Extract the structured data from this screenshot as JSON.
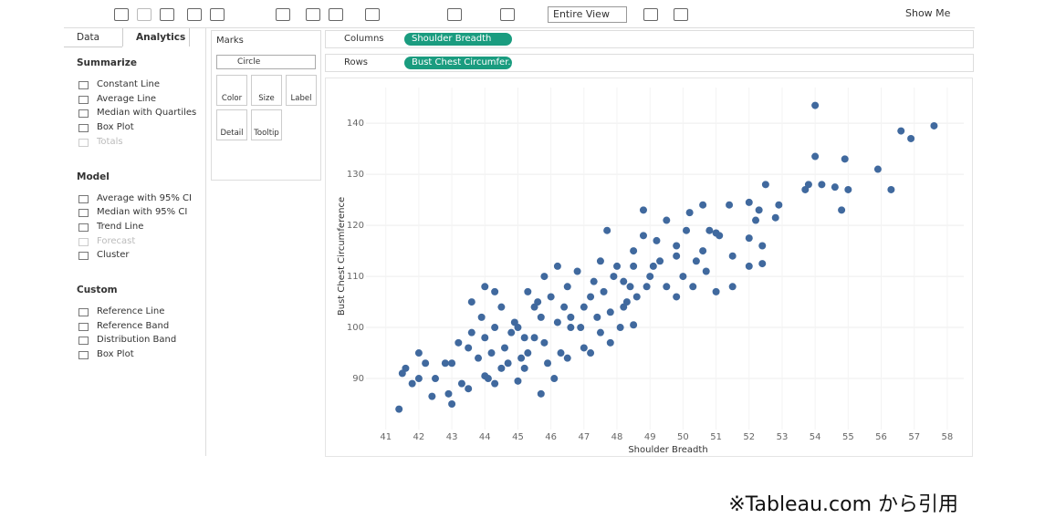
{
  "toolbar": {
    "view_mode": "Entire View",
    "show_me": "Show Me"
  },
  "side_panel": {
    "tabs": [
      "Data",
      "Analytics"
    ],
    "active_tab": 1,
    "sections": [
      {
        "title": "Summarize",
        "items": [
          {
            "label": "Constant Line"
          },
          {
            "label": "Average Line"
          },
          {
            "label": "Median with Quartiles"
          },
          {
            "label": "Box Plot"
          },
          {
            "label": "Totals",
            "disabled": true
          }
        ]
      },
      {
        "title": "Model",
        "items": [
          {
            "label": "Average with 95% CI"
          },
          {
            "label": "Median with 95% CI"
          },
          {
            "label": "Trend Line"
          },
          {
            "label": "Forecast",
            "disabled": true
          },
          {
            "label": "Cluster"
          }
        ]
      },
      {
        "title": "Custom",
        "items": [
          {
            "label": "Reference Line"
          },
          {
            "label": "Reference Band"
          },
          {
            "label": "Distribution Band"
          },
          {
            "label": "Box Plot"
          }
        ]
      }
    ]
  },
  "marks": {
    "title": "Marks",
    "mark_type": "Circle",
    "cards": [
      "Color",
      "Size",
      "Label",
      "Detail",
      "Tooltip"
    ]
  },
  "shelves": {
    "columns": {
      "label": "Columns",
      "pill": "Shoulder Breadth"
    },
    "rows": {
      "label": "Rows",
      "pill": "Bust Chest Circumfer.."
    }
  },
  "chart_data": {
    "type": "scatter",
    "x_label": "Shoulder Breadth",
    "y_label": "Bust Chest Circumference",
    "color": "#40699e",
    "grid": true,
    "xlim": [
      40.4,
      58.5
    ],
    "ylim": [
      80,
      147
    ],
    "xticks": [
      41,
      42,
      43,
      44,
      45,
      46,
      47,
      48,
      49,
      50,
      51,
      52,
      53,
      54,
      55,
      56,
      57,
      58
    ],
    "yticks": [
      90,
      100,
      110,
      120,
      130,
      140
    ],
    "x": [
      54.0,
      54.0,
      54.2,
      54.6,
      54.9,
      55.0,
      54.8,
      55.9,
      56.3,
      56.6,
      56.9,
      57.6,
      53.7,
      53.8,
      52.5,
      52.9,
      52.3,
      52.0,
      51.4,
      52.8,
      52.2,
      52.0,
      52.4,
      52.0,
      52.4,
      51.1,
      51.5,
      51.5,
      51.0,
      50.6,
      50.2,
      50.8,
      50.6,
      50.4,
      50.0,
      49.8,
      50.1,
      49.5,
      49.8,
      49.2,
      48.8,
      48.8,
      48.5,
      49.0,
      48.4,
      48.6,
      48.2,
      48.0,
      47.7,
      47.5,
      47.3,
      47.0,
      46.8,
      46.5,
      46.9,
      47.2,
      46.4,
      46.2,
      45.8,
      46.0,
      45.7,
      45.5,
      45.5,
      45.8,
      45.9,
      46.3,
      46.6,
      47.5,
      47.0,
      47.8,
      48.1,
      48.5,
      49.5,
      49.8,
      50.3,
      51.0,
      50.7,
      44.5,
      44.9,
      44.6,
      44.7,
      44.2,
      44.0,
      44.3,
      44.8,
      45.1,
      45.2,
      44.5,
      44.1,
      43.8,
      43.6,
      43.9,
      43.5,
      43.2,
      43.0,
      43.3,
      42.9,
      42.5,
      42.2,
      42.0,
      41.8,
      41.5,
      41.4,
      41.6,
      42.0,
      42.4,
      42.8,
      43.0,
      43.5,
      44.0,
      44.3,
      45.2,
      45.0,
      45.7,
      46.1,
      46.5,
      47.2,
      43.6,
      44.3,
      44.0,
      45.3,
      45.6,
      46.6,
      47.4,
      48.5,
      49.1,
      49.3,
      47.9,
      47.6,
      48.2,
      48.9,
      45.0,
      45.3,
      46.2,
      47.8,
      48.3
    ],
    "y": [
      143.5,
      133.5,
      128,
      127.5,
      133,
      127,
      123,
      131,
      127,
      138.5,
      137,
      139.5,
      127,
      128,
      128,
      124,
      123,
      124.5,
      124,
      121.5,
      121,
      117.5,
      116,
      112,
      112.5,
      118,
      114,
      108,
      118.5,
      124,
      122.5,
      119,
      115,
      113,
      110,
      114,
      119,
      121,
      116,
      117,
      123,
      118,
      112,
      110,
      108,
      106,
      104,
      112,
      119,
      113,
      109,
      104,
      111,
      108,
      100,
      106,
      104,
      112,
      110,
      106,
      102,
      104,
      98,
      97,
      93,
      95,
      100,
      99,
      96,
      103,
      100,
      100.5,
      108,
      106,
      108,
      107,
      111,
      104,
      101,
      96,
      93,
      95,
      98,
      100,
      99,
      94,
      98,
      92,
      90,
      94,
      99,
      102,
      96,
      97,
      93,
      89,
      87,
      90,
      93,
      90,
      89,
      91,
      84,
      92,
      95,
      86.5,
      93,
      85,
      88,
      90.5,
      89,
      92,
      89.5,
      87,
      90,
      94,
      95,
      105,
      107,
      108,
      107,
      105,
      102,
      102,
      115,
      112,
      113,
      110,
      107,
      109,
      108,
      100,
      95,
      101,
      97,
      105
    ]
  },
  "footer": "※Tableau.com から引用"
}
